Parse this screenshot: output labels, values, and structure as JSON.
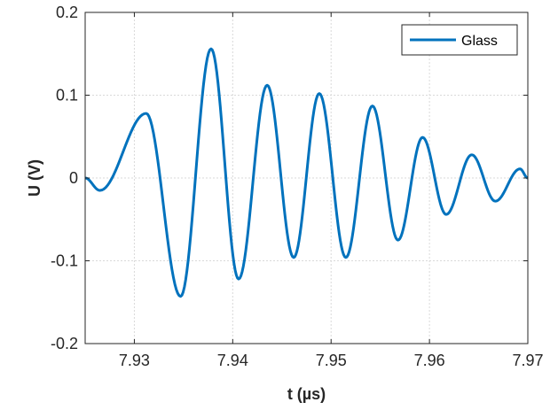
{
  "chart_data": {
    "type": "line",
    "title": "",
    "xlabel": "t (µs)",
    "ylabel": "U (V)",
    "xlim": [
      7.925,
      7.97
    ],
    "ylim": [
      -0.2,
      0.2
    ],
    "x_ticks": [
      7.93,
      7.94,
      7.95,
      7.96,
      7.97
    ],
    "x_tick_labels": [
      "7.93",
      "7.94",
      "7.95",
      "7.96",
      "7.97"
    ],
    "y_ticks": [
      -0.2,
      -0.1,
      0,
      0.1,
      0.2
    ],
    "y_tick_labels": [
      "-0.2",
      "-0.1",
      "0",
      "0.1",
      "0.2"
    ],
    "grid": true,
    "legend_position": "top-right",
    "series": [
      {
        "name": "Glass",
        "color": "#0072BD",
        "extrema": [
          [
            7.925,
            0.0
          ],
          [
            7.9265,
            -0.015
          ],
          [
            7.9312,
            0.078
          ],
          [
            7.9347,
            -0.143
          ],
          [
            7.9378,
            0.156
          ],
          [
            7.9406,
            -0.122
          ],
          [
            7.9435,
            0.112
          ],
          [
            7.9462,
            -0.096
          ],
          [
            7.9488,
            0.102
          ],
          [
            7.9515,
            -0.096
          ],
          [
            7.9542,
            0.087
          ],
          [
            7.9568,
            -0.075
          ],
          [
            7.9593,
            0.049
          ],
          [
            7.9617,
            -0.044
          ],
          [
            7.9643,
            0.028
          ],
          [
            7.9667,
            -0.028
          ],
          [
            7.9692,
            0.011
          ],
          [
            7.97,
            0.0
          ]
        ]
      }
    ]
  }
}
